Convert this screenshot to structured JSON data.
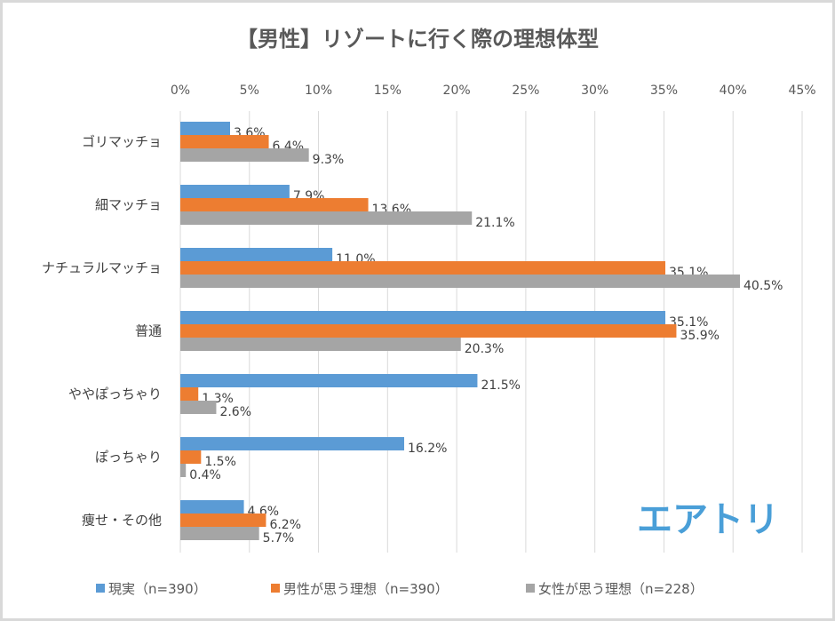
{
  "chart_data": {
    "type": "bar",
    "orientation": "horizontal",
    "title": "【男性】リゾートに行く際の理想体型",
    "categories": [
      "ゴリマッチョ",
      "細マッチョ",
      "ナチュラルマッチョ",
      "普通",
      "ややぽっちゃり",
      "ぽっちゃり",
      "痩せ・その他"
    ],
    "series": [
      {
        "name": "現実（n=390）",
        "color": "#5b9bd5",
        "values": [
          3.6,
          7.9,
          11.0,
          35.1,
          21.5,
          16.2,
          4.6
        ]
      },
      {
        "name": "男性が思う理想（n=390）",
        "color": "#ed7d31",
        "values": [
          6.4,
          13.6,
          35.1,
          35.9,
          1.3,
          1.5,
          6.2
        ]
      },
      {
        "name": "女性が思う理想（n=228）",
        "color": "#a5a5a5",
        "values": [
          9.3,
          21.1,
          40.5,
          20.3,
          2.6,
          0.4,
          5.7
        ]
      }
    ],
    "xlim": [
      0,
      45
    ],
    "xticks": [
      "0%",
      "5%",
      "10%",
      "15%",
      "20%",
      "25%",
      "30%",
      "35%",
      "40%",
      "45%"
    ],
    "x_axis_position": "top",
    "grid": true,
    "legend": "bottom",
    "data_label_format": "%"
  },
  "logo": {
    "text": "エアトリ",
    "color": "#4a9fd8"
  }
}
